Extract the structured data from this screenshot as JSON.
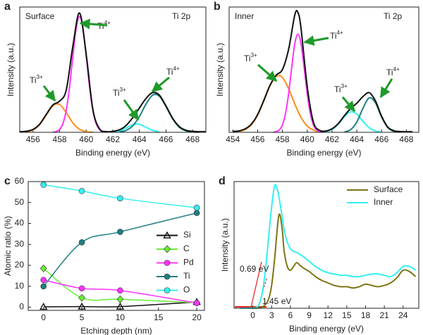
{
  "chart_data": [
    {
      "type": "line",
      "panel": "a",
      "xlabel": "Binding energy (eV)",
      "ylabel": "Intensity (a.u.)",
      "xlim": [
        455,
        469
      ],
      "xticks": [
        456,
        458,
        460,
        462,
        464,
        466,
        468
      ],
      "ylim": [
        0,
        105
      ],
      "series": [
        {
          "color": "#ff8c1a",
          "x": [
            455.5,
            456,
            456.5,
            457,
            457.5,
            458,
            458.5,
            459,
            459.5,
            460,
            460.5
          ],
          "values": [
            0.4,
            1.9,
            6.4,
            14.6,
            22.4,
            23.3,
            16.4,
            7.8,
            2.5,
            0.5,
            0.1
          ]
        },
        {
          "color": "#ff33ff",
          "x": [
            457.5,
            457.75,
            458,
            458.25,
            458.5,
            458.75,
            459,
            459.25,
            459.5,
            459.75,
            460,
            460.25,
            460.5,
            460.75,
            461,
            461.25,
            461.5
          ],
          "values": [
            0.1,
            0.6,
            2.4,
            7.3,
            18.6,
            38.3,
            64.2,
            87.5,
            97,
            87.5,
            64.2,
            38.3,
            18.6,
            7.3,
            2.4,
            0.6,
            0.1
          ]
        },
        {
          "color": "#33f0f0",
          "x": [
            462,
            462.5,
            463,
            463.5,
            464,
            464.5,
            465,
            465.5
          ],
          "values": [
            0.3,
            1.2,
            3.6,
            6.4,
            6.7,
            4.2,
            1.6,
            0.4
          ]
        },
        {
          "color": "#1f7f7f",
          "x": [
            462.5,
            463,
            463.5,
            464,
            464.5,
            465,
            465.5,
            466,
            466.5,
            467,
            467.5,
            468,
            468.5
          ],
          "values": [
            0.4,
            1.6,
            5.4,
            13.2,
            23.7,
            31.2,
            30.3,
            21.6,
            11.3,
            4.3,
            1.2,
            0.3,
            0
          ]
        },
        {
          "color": "#111111",
          "x": [
            455,
            455.5,
            456,
            456.5,
            457,
            457.5,
            458,
            458.5,
            459,
            459.5,
            460,
            460.5,
            461,
            461.5,
            462,
            462.5,
            463,
            463.5,
            464,
            464.5,
            465,
            465.5,
            466,
            466.5,
            467,
            467.5,
            468,
            468.5,
            469
          ],
          "values": [
            0.5,
            0.9,
            2.4,
            6.9,
            15.1,
            23.0,
            26.2,
            35.5,
            72.5,
            100.0,
            65.2,
            19.2,
            2.9,
            0.6,
            0.8,
            2.1,
            5.7,
            12.3,
            20.4,
            28.4,
            33.3,
            31.2,
            22.1,
            11.8,
            4.8,
            1.7,
            0.8,
            0.5,
            0.5
          ]
        }
      ],
      "annotations": [
        {
          "text": "Surface"
        },
        {
          "text": "Ti 2p"
        },
        {
          "text": "Ti",
          "sup": "4+"
        },
        {
          "text": "Ti",
          "sup": "3+"
        },
        {
          "text": "Ti",
          "sup": "3+"
        },
        {
          "text": "Ti",
          "sup": "4+"
        }
      ]
    },
    {
      "type": "line",
      "panel": "b",
      "xlabel": "Binding energy (eV)",
      "ylabel": "Intensity (a.u.)",
      "xlim": [
        453.7,
        469
      ],
      "xticks": [
        454,
        456,
        458,
        460,
        462,
        464,
        466,
        468
      ],
      "ylim": [
        0,
        97
      ],
      "series": [
        {
          "color": "#ff8c1a",
          "x": [
            454.5,
            455,
            455.5,
            456,
            456.5,
            457,
            457.5,
            458,
            458.5,
            459,
            459.5,
            460,
            460.5,
            461
          ],
          "values": [
            0.6,
            2.2,
            5.9,
            13.3,
            24.3,
            36.0,
            43.3,
            42.4,
            33.8,
            21.9,
            11.5,
            4.9,
            1.7,
            0.5
          ]
        },
        {
          "color": "#ff33ff",
          "x": [
            457.25,
            457.5,
            457.75,
            458,
            458.25,
            458.5,
            458.75,
            459,
            459.25,
            459.5,
            459.75,
            460,
            460.25,
            460.5,
            460.75,
            461,
            461.25
          ],
          "values": [
            0.1,
            0.5,
            1.8,
            5.7,
            14.6,
            30.0,
            50.3,
            68.6,
            76,
            68.6,
            50.3,
            30.0,
            14.6,
            5.7,
            1.8,
            0.5,
            0.1
          ]
        },
        {
          "color": "#33f0f0",
          "x": [
            461.5,
            462,
            462.5,
            463,
            463.5,
            464,
            464.5,
            465,
            465.5,
            466
          ],
          "values": [
            0.5,
            2.2,
            6.2,
            12.1,
            15.9,
            14.1,
            8.5,
            3.5,
            1.0,
            0.2
          ]
        },
        {
          "color": "#1f7f7f",
          "x": [
            463,
            463.5,
            464,
            464.5,
            465,
            465.5,
            466,
            466.5,
            467,
            467.5
          ],
          "values": [
            0.3,
            2.0,
            7.9,
            18.7,
            26.7,
            22.9,
            11.8,
            3.6,
            0.7,
            0.1
          ]
        },
        {
          "color": "#111111",
          "x": [
            454,
            454.5,
            455,
            455.5,
            456,
            456.5,
            457,
            457.5,
            458,
            458.5,
            459,
            459.25,
            459.5,
            460,
            460.5,
            461,
            461.5,
            462,
            462.5,
            463,
            463.5,
            464,
            464.5,
            465,
            465.5,
            466,
            466.5,
            467,
            467.5,
            468,
            468.5
          ],
          "values": [
            0.7,
            1.1,
            2.7,
            6.4,
            13.8,
            24.8,
            36.5,
            44.3,
            48.6,
            64.3,
            91.0,
            92.8,
            80.6,
            35.4,
            7.9,
            1.5,
            1.0,
            2.7,
            6.7,
            12.9,
            18.4,
            22.5,
            27.7,
            30.7,
            24.4,
            12.5,
            4.1,
            1.2,
            0.6,
            0.5,
            0.5
          ]
        }
      ],
      "annotations": [
        {
          "text": "Inner"
        },
        {
          "text": "Ti 2p"
        },
        {
          "text": "Ti",
          "sup": "3+"
        },
        {
          "text": "Ti",
          "sup": "4+"
        },
        {
          "text": "Ti",
          "sup": "3+"
        },
        {
          "text": "Ti",
          "sup": "4+"
        }
      ]
    },
    {
      "type": "line",
      "panel": "c",
      "xlabel": "Etching depth (nm)",
      "ylabel": "Atomic ratio (%)",
      "xlim": [
        -2,
        21
      ],
      "xticks": [
        0,
        5,
        10,
        15,
        20
      ],
      "ylim": [
        -1.5,
        60
      ],
      "yticks": [
        0,
        10,
        20,
        30,
        40,
        50,
        60
      ],
      "legend": "center right",
      "x": [
        0,
        5,
        10,
        20
      ],
      "series": [
        {
          "name": "Si",
          "color": "#111111",
          "marker": "triangle",
          "values": [
            0.2,
            0.3,
            0.3,
            2.5
          ]
        },
        {
          "name": "C",
          "color": "#66ee33",
          "marker": "diamond",
          "values": [
            18.5,
            4.5,
            3.8,
            2.2
          ]
        },
        {
          "name": "Pd",
          "color": "#ff33ff",
          "marker": "circle",
          "values": [
            13,
            9,
            8,
            2
          ]
        },
        {
          "name": "Ti",
          "color": "#1f7f7f",
          "marker": "circle",
          "values": [
            10,
            31,
            36,
            45
          ]
        },
        {
          "name": "O",
          "color": "#33f0f0",
          "marker": "circle",
          "values": [
            58.5,
            55.5,
            52,
            47.5
          ]
        }
      ]
    },
    {
      "type": "line",
      "panel": "d",
      "xlabel": "Binding energy (eV)",
      "ylabel": "Intensity (a.u.)",
      "xlim": [
        -3,
        26.5
      ],
      "xticks": [
        0,
        3,
        6,
        9,
        12,
        15,
        18,
        21,
        24
      ],
      "ylim": [
        0,
        100
      ],
      "legend": "upper right",
      "series": [
        {
          "name": "Surface",
          "color": "#7d7414",
          "x": [
            -2,
            -1,
            0,
            1,
            1.5,
            2,
            2.5,
            3,
            3.5,
            4,
            4.3,
            4.7,
            5,
            5.5,
            6,
            6.5,
            7,
            7.5,
            8,
            9,
            10,
            11,
            12,
            13,
            14,
            15,
            16,
            17,
            18,
            19,
            20,
            21,
            22,
            23,
            24,
            25,
            26
          ],
          "values": [
            0,
            0,
            0,
            0.3,
            1,
            3,
            7,
            18,
            40,
            68,
            74,
            62,
            45,
            33,
            30,
            33,
            36,
            34,
            32,
            29,
            25,
            22,
            20,
            18,
            17,
            17,
            16,
            17,
            19,
            18,
            17,
            18,
            20,
            24,
            30,
            29,
            25
          ]
        },
        {
          "name": "Inner",
          "color": "#33f0f0",
          "x": [
            -2,
            -1,
            0,
            0.5,
            1,
            1.5,
            2,
            2.5,
            3,
            3.5,
            4,
            4.5,
            5,
            5.5,
            6,
            6.5,
            7,
            8,
            9,
            10,
            11,
            12,
            13,
            14,
            15,
            16,
            17,
            18,
            19,
            20,
            21,
            22,
            23,
            24,
            25,
            26
          ],
          "values": [
            0,
            0,
            0.2,
            0.5,
            3,
            12,
            30,
            55,
            80,
            97,
            92,
            78,
            62,
            52,
            47,
            45,
            44,
            41,
            37,
            33,
            30,
            28,
            27,
            26,
            26,
            25,
            25,
            26,
            27,
            27,
            26,
            25,
            28,
            33,
            33,
            30
          ]
        }
      ],
      "annotations": [
        {
          "text": "0.69 eV"
        },
        {
          "text": "1.45 eV"
        }
      ]
    }
  ]
}
